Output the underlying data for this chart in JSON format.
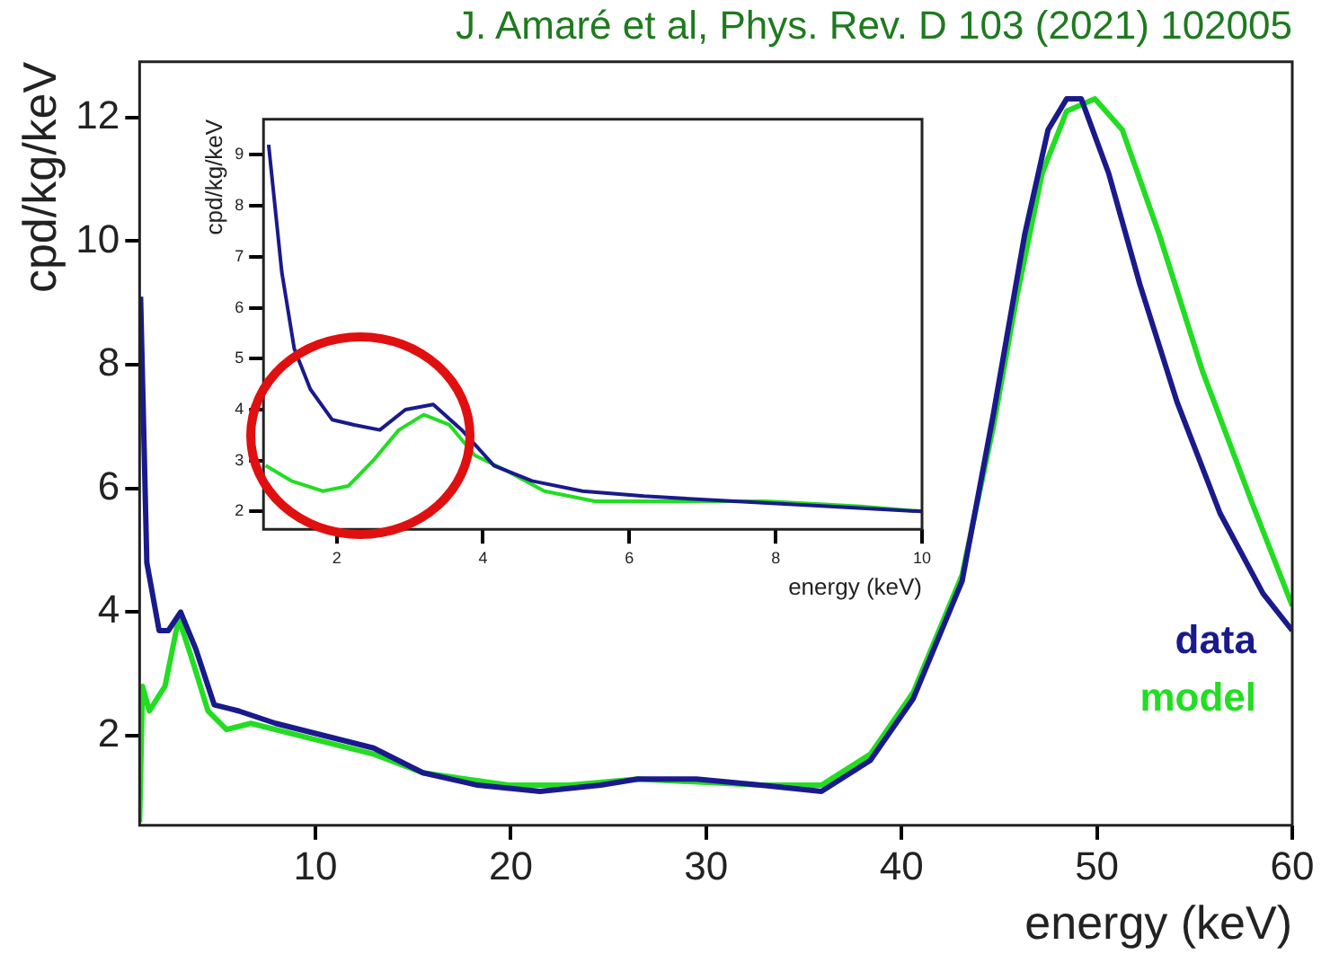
{
  "chart_data": [
    {
      "type": "line",
      "title": "J. Amaré et al, Phys. Rev. D 103 (2021) 102005",
      "xlabel": "energy (keV)",
      "ylabel": "cpd/kg/keV",
      "xlim": [
        1,
        60
      ],
      "ylim": [
        0.55,
        12.9
      ],
      "xticks": [
        10,
        20,
        30,
        40,
        50,
        60
      ],
      "yticks": [
        2,
        4,
        6,
        8,
        10,
        12
      ],
      "grid": false,
      "legend": "bottom right",
      "series": [
        {
          "name": "data",
          "color": "#1a1a8c",
          "x": [
            1.05,
            1.37,
            2.0,
            2.47,
            3.1,
            3.88,
            4.82,
            6.08,
            7.96,
            10.47,
            12.98,
            15.5,
            18.3,
            21.5,
            24.6,
            26.5,
            29.5,
            32.8,
            35.9,
            38.4,
            40.6,
            43.1,
            44.7,
            46.3,
            47.5,
            48.45,
            49.2,
            50.6,
            52.2,
            54.1,
            56.3,
            58.5,
            60
          ],
          "values": [
            9.1,
            4.8,
            3.7,
            3.7,
            4.0,
            3.4,
            2.5,
            2.4,
            2.2,
            2.0,
            1.8,
            1.4,
            1.2,
            1.1,
            1.2,
            1.3,
            1.3,
            1.2,
            1.1,
            1.6,
            2.6,
            4.5,
            7.2,
            10.1,
            11.8,
            12.3,
            12.3,
            11.1,
            9.3,
            7.4,
            5.6,
            4.3,
            3.7
          ]
        },
        {
          "name": "model",
          "color": "#22dd22",
          "x": [
            1,
            1.15,
            1.5,
            2.3,
            3.0,
            3.72,
            4.5,
            5.45,
            6.7,
            10.47,
            13,
            15.5,
            19.9,
            23,
            26.5,
            32.8,
            35.9,
            38.4,
            40.6,
            43.1,
            44.7,
            45.9,
            47.2,
            48.45,
            49.9,
            51.3,
            53.2,
            55.4,
            57.9,
            60
          ],
          "values": [
            0.6,
            2.8,
            2.4,
            2.8,
            3.9,
            3.2,
            2.4,
            2.1,
            2.2,
            1.9,
            1.7,
            1.4,
            1.2,
            1.2,
            1.3,
            1.2,
            1.2,
            1.7,
            2.7,
            4.6,
            7.0,
            9.1,
            11.1,
            12.1,
            12.3,
            11.8,
            10.1,
            7.9,
            5.8,
            4.1
          ]
        }
      ]
    },
    {
      "type": "line",
      "xlabel": "energy (keV)",
      "ylabel": "cpd/kg/keV",
      "xlim": [
        1,
        10
      ],
      "ylim": [
        1.65,
        9.7
      ],
      "xticks": [
        2,
        4,
        6,
        8,
        10
      ],
      "yticks": [
        2,
        3,
        4,
        5,
        6,
        7,
        8,
        9
      ],
      "grid": false,
      "series": [
        {
          "color": "#1a1a8c",
          "x": [
            1.07,
            1.25,
            1.42,
            1.64,
            1.94,
            2.24,
            2.59,
            2.94,
            3.32,
            3.71,
            4.15,
            4.67,
            5.36,
            6.2,
            7.44,
            8.74,
            10
          ],
          "values": [
            9.2,
            6.7,
            5.2,
            4.4,
            3.8,
            3.7,
            3.6,
            4.0,
            4.1,
            3.6,
            2.9,
            2.6,
            2.4,
            2.3,
            2.2,
            2.1,
            2.0
          ]
        },
        {
          "color": "#22dd22",
          "x": [
            1.03,
            1.38,
            1.81,
            2.16,
            2.5,
            2.85,
            3.19,
            3.54,
            3.89,
            4.32,
            4.84,
            5.53,
            6.57,
            7.87,
            9.17,
            10
          ],
          "values": [
            2.9,
            2.6,
            2.4,
            2.5,
            3.0,
            3.6,
            3.9,
            3.7,
            3.1,
            2.8,
            2.4,
            2.2,
            2.2,
            2.2,
            2.1,
            2.0
          ]
        }
      ]
    }
  ]
}
